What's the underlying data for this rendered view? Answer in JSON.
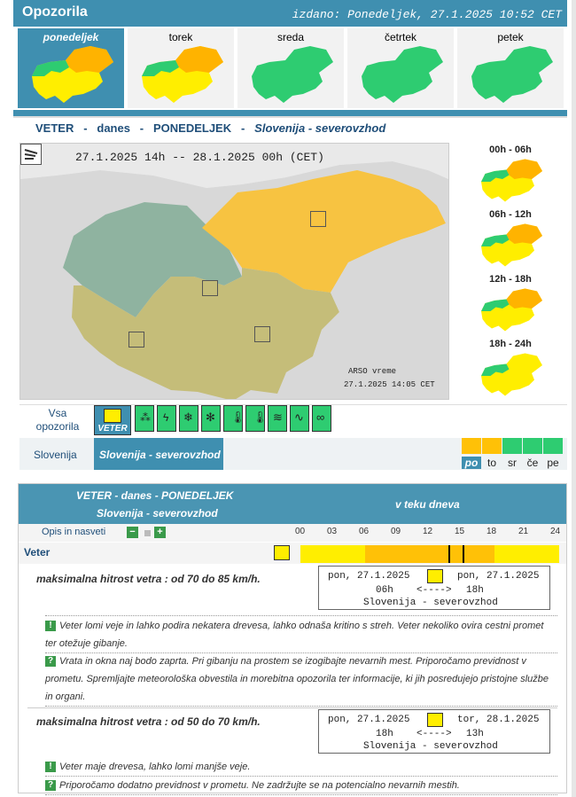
{
  "header": {
    "title": "Opozorila",
    "issued": "izdano: Ponedeljek, 27.1.2025 10:52 CET"
  },
  "days": [
    {
      "label": "ponedeljek",
      "selected": true
    },
    {
      "label": "torek"
    },
    {
      "label": "sreda"
    },
    {
      "label": "četrtek"
    },
    {
      "label": "petek"
    }
  ],
  "section_title": {
    "a": "VETER",
    "sep": "-",
    "b": "danes",
    "c": "PONEDELJEK",
    "d": "Slovenija - severovzhod"
  },
  "map": {
    "period": "27.1.2025 14h -- 28.1.2025 00h",
    "tz": "(CET)",
    "credit1": "ARSO vreme",
    "credit2": "27.1.2025 14:05 CET"
  },
  "side_panels": [
    "00h - 06h",
    "06h - 12h",
    "12h - 18h",
    "18h - 24h"
  ],
  "types": {
    "all_label1": "Vsa",
    "all_label2": "opozorila",
    "selected_label": "VETER"
  },
  "region": {
    "label": "Slovenija",
    "selected": "Slovenija - severovzhod"
  },
  "legend": [
    "po",
    "to",
    "sr",
    "če",
    "pe"
  ],
  "panel": {
    "head1": "VETER - danes - PONEDELJEK",
    "head2": "Slovenija - severovzhod",
    "head3": "v teku dneva",
    "opis": "Opis in nasveti",
    "minus": "−",
    "plus": "+",
    "row": "Veter",
    "hours": [
      "00",
      "03",
      "06",
      "09",
      "12",
      "15",
      "18",
      "21",
      "24"
    ]
  },
  "warnings": [
    {
      "title": "maksimalna hitrost vetra : od 70 do 85 km/h.",
      "from_day": "pon, 27.1.2025",
      "to_day": "pon, 27.1.2025",
      "from_h": "06h",
      "arrow": "<---->",
      "to_h": "18h",
      "region": "Slovenija - severovzhod",
      "note1": "Veter lomi veje in lahko podira nekatera drevesa, lahko odnaša kritino s streh. Veter nekoliko ovira cestni promet ter otežuje gibanje.",
      "note2": "Vrata in okna naj bodo zaprta. Pri gibanju na prostem se izogibajte nevarnih mest. Priporočamo previdnost v prometu. Spremljajte meteorološka obvestila in morebitna opozorila ter informacije, ki jih posredujejo pristojne službe in organi."
    },
    {
      "title": "maksimalna hitrost vetra : od 50 do 70 km/h.",
      "from_day": "pon, 27.1.2025",
      "to_day": "tor, 28.1.2025",
      "from_h": "18h",
      "arrow": "<---->",
      "to_h": "13h",
      "region": "Slovenija - severovzhod",
      "note1": "Veter maje drevesa, lahko lomi manjše veje.",
      "note2": "Priporočamo dodatno previdnost v prometu. Ne zadržujte se na potencialno nevarnih mestih."
    }
  ],
  "colors": {
    "accent": "#3f8fb0",
    "green": "#2ecc71",
    "yellow": "#ffee00",
    "orange": "#ffc107"
  }
}
